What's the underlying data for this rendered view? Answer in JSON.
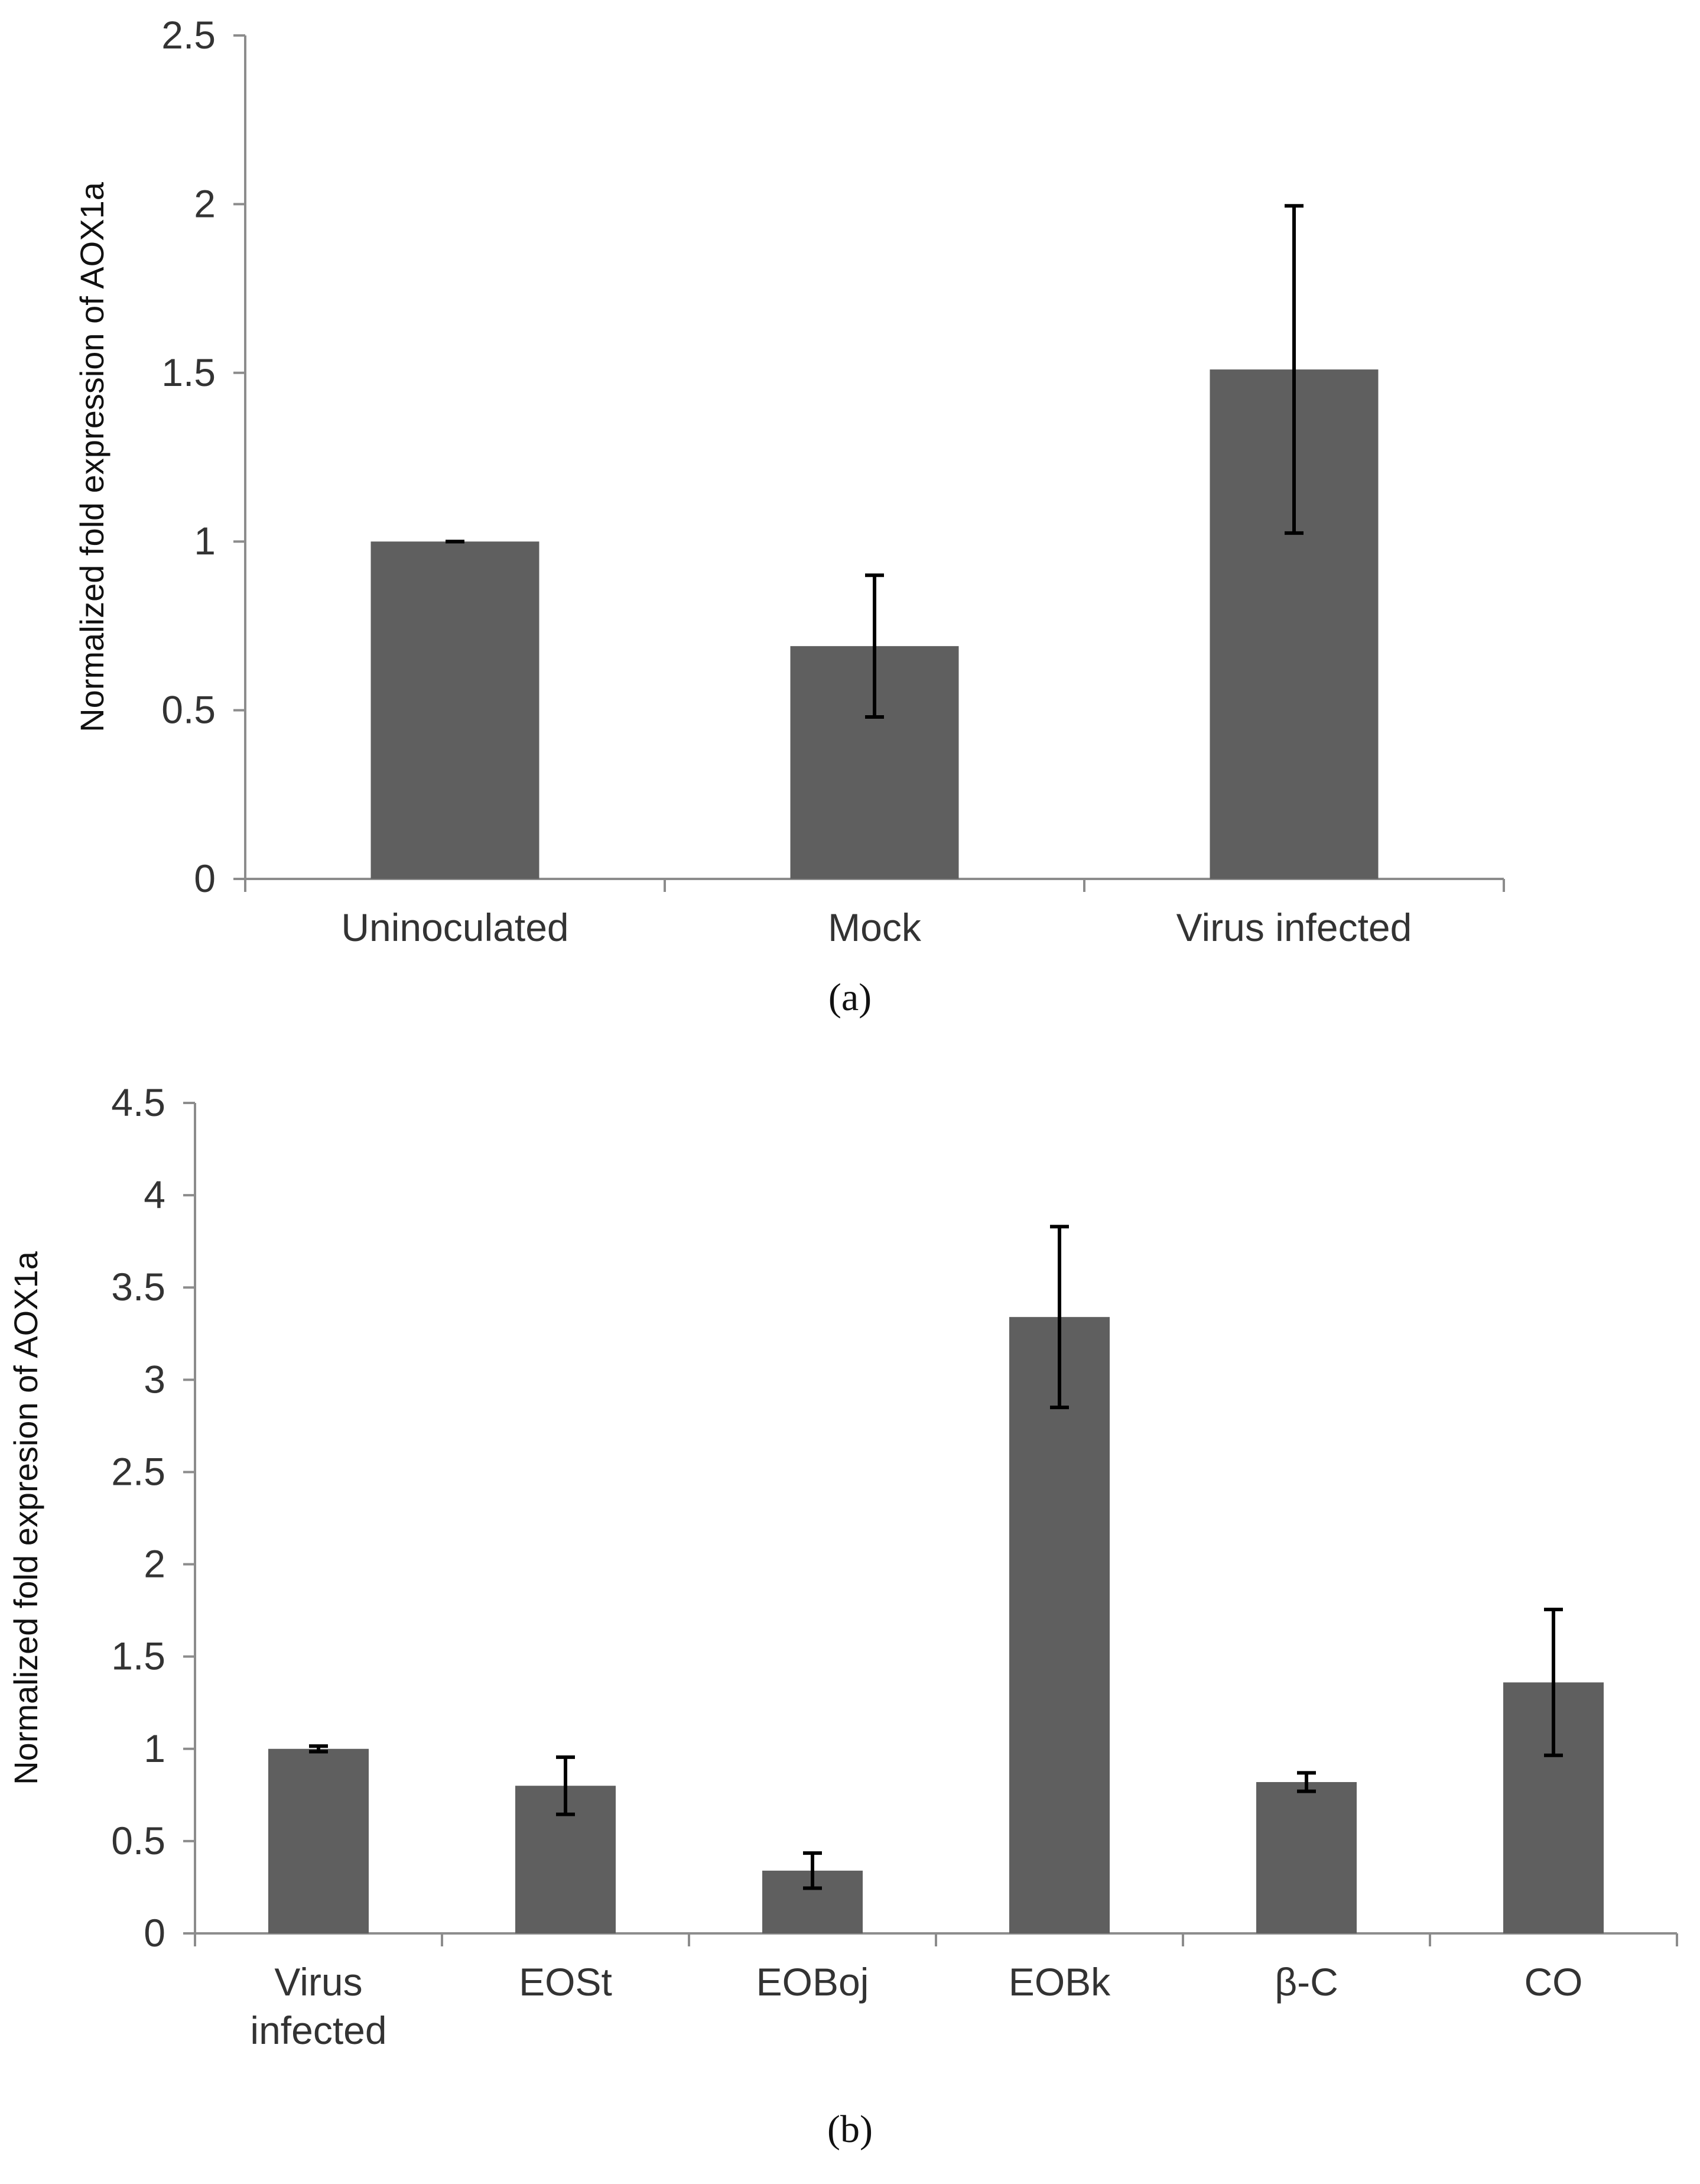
{
  "chart_data": [
    {
      "type": "bar",
      "title": "",
      "caption": "(a)",
      "xlabel": "",
      "ylabel": "Normalized fold expression of AOX1a",
      "ylim": [
        0,
        2.5
      ],
      "yticks": [
        "0",
        "0.5",
        "1",
        "1.5",
        "2",
        "2.5"
      ],
      "categories": [
        [
          "Uninoculated"
        ],
        [
          "Mock"
        ],
        [
          "Virus infected"
        ]
      ],
      "values": [
        1.0,
        0.69,
        1.51
      ],
      "errors": [
        0.0,
        0.21,
        0.485
      ],
      "bar_color": "#5f5f5f"
    },
    {
      "type": "bar",
      "title": "",
      "caption": "(b)",
      "xlabel": "",
      "ylabel": "Normalized fold expresion of AOX1a",
      "ylim": [
        0,
        4.5
      ],
      "yticks": [
        "0",
        "0.5",
        "1",
        "1.5",
        "2",
        "2.5",
        "3",
        "3.5",
        "4",
        "4.5"
      ],
      "categories": [
        [
          "Virus",
          "infected"
        ],
        [
          "EOSt"
        ],
        [
          "EOBoj"
        ],
        [
          "EOBk"
        ],
        [
          "β-C"
        ],
        [
          "CO"
        ]
      ],
      "values": [
        1.0,
        0.8,
        0.34,
        3.34,
        0.82,
        1.36
      ],
      "errors": [
        0.015,
        0.155,
        0.095,
        0.49,
        0.05,
        0.395
      ],
      "bar_color": "#5f5f5f"
    }
  ]
}
